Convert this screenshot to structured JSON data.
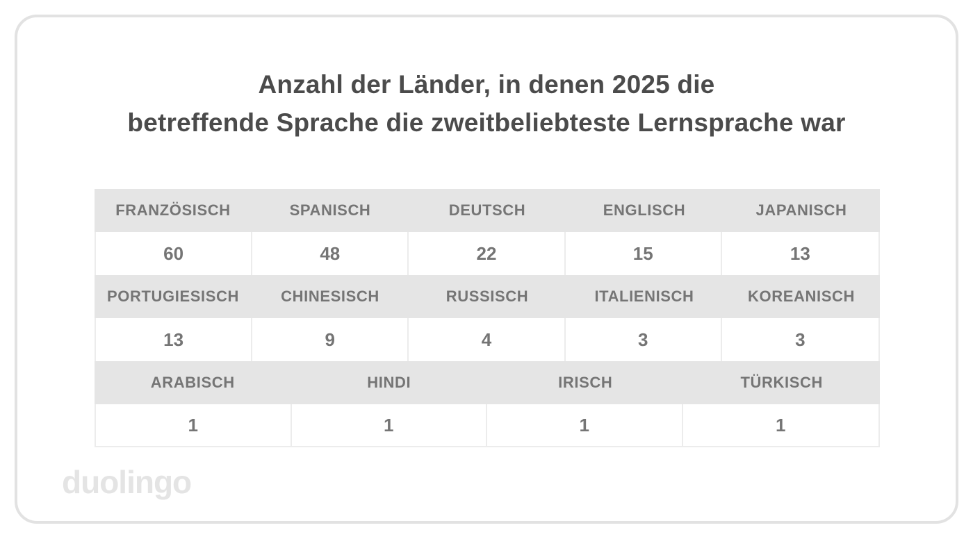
{
  "title": {
    "line1": "Anzahl der Länder, in denen 2025 die",
    "line2": "betreffende Sprache die zweitbeliebteste Lernsprache war"
  },
  "logo_text": "duolingo",
  "colors": {
    "title_text": "#4b4b4b",
    "table_text": "#757575",
    "header_bg": "#e5e5e5",
    "cell_border": "#ececec",
    "card_border": "#e2e2e2",
    "logo_text": "#e4e4e4"
  },
  "chart_data": {
    "type": "table",
    "title": "Anzahl der Länder, in denen 2025 die betreffende Sprache die zweitbeliebteste Lernsprache war",
    "note_layout": "three banded row-pairs; gray label row above white value row; group 1 and 2 have 5 equal columns, group 3 has 4 equal columns",
    "groups": [
      {
        "labels": [
          "FRANZÖSISCH",
          "SPANISCH",
          "DEUTSCH",
          "ENGLISCH",
          "JAPANISCH"
        ],
        "values": [
          60,
          48,
          22,
          15,
          13
        ]
      },
      {
        "labels": [
          "PORTUGIESISCH",
          "CHINESISCH",
          "RUSSISCH",
          "ITALIENISCH",
          "KOREANISCH"
        ],
        "values": [
          13,
          9,
          4,
          3,
          3
        ]
      },
      {
        "labels": [
          "ARABISCH",
          "HINDI",
          "IRISCH",
          "TÜRKISCH"
        ],
        "values": [
          1,
          1,
          1,
          1
        ]
      }
    ]
  }
}
